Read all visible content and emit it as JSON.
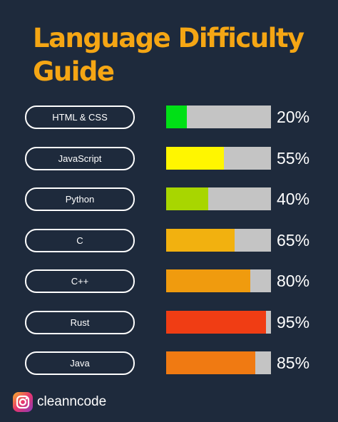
{
  "chart_data": {
    "type": "bar",
    "title": "Language Difficulty Guide",
    "categories": [
      "HTML & CSS",
      "JavaScript",
      "Python",
      "C",
      "C++",
      "Rust",
      "Java"
    ],
    "values": [
      20,
      55,
      40,
      65,
      80,
      95,
      85
    ],
    "value_labels": [
      "20%",
      "55%",
      "40%",
      "65%",
      "80%",
      "95%",
      "85%"
    ],
    "colors": [
      "#00e016",
      "#fff600",
      "#a8d600",
      "#f2b10f",
      "#f09b0e",
      "#f03d14",
      "#f07a12"
    ],
    "track_color": "#c4c4c4",
    "ylim": [
      0,
      100
    ],
    "orientation": "horizontal"
  },
  "brand": {
    "name": "cleanncode",
    "icon": "instagram-icon"
  }
}
